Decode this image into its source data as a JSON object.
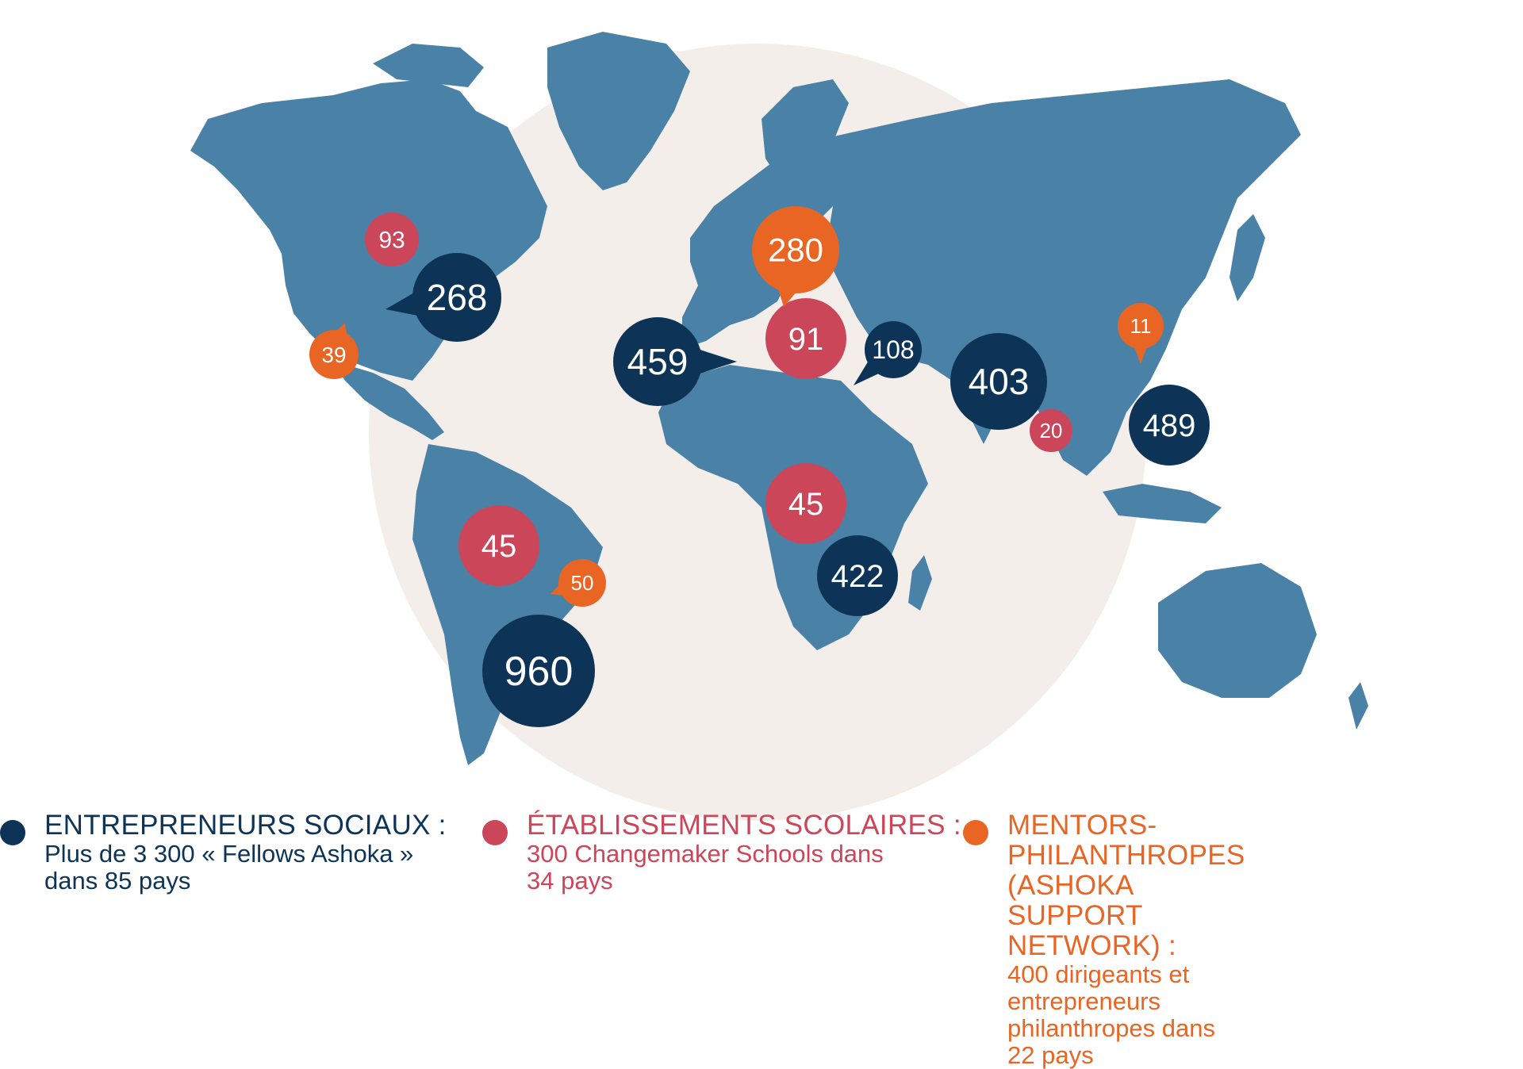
{
  "colors": {
    "navy": "#0d3457",
    "red": "#cc4659",
    "orange": "#e96524",
    "land": "#4a82a7",
    "backdrop": "#f3eeea"
  },
  "markers": [
    {
      "category": "entrepreneurs",
      "value": "268",
      "icon": "speech-bubble"
    },
    {
      "category": "entrepreneurs",
      "value": "459",
      "icon": "speech-bubble"
    },
    {
      "category": "entrepreneurs",
      "value": "108",
      "icon": "speech-bubble"
    },
    {
      "category": "entrepreneurs",
      "value": "403",
      "icon": "circle"
    },
    {
      "category": "entrepreneurs",
      "value": "489",
      "icon": "circle"
    },
    {
      "category": "entrepreneurs",
      "value": "422",
      "icon": "circle"
    },
    {
      "category": "entrepreneurs",
      "value": "960",
      "icon": "circle"
    },
    {
      "category": "schools",
      "value": "93",
      "icon": "circle"
    },
    {
      "category": "schools",
      "value": "91",
      "icon": "circle"
    },
    {
      "category": "schools",
      "value": "20",
      "icon": "circle"
    },
    {
      "category": "schools",
      "value": "45",
      "icon": "circle"
    },
    {
      "category": "schools",
      "value": "45",
      "icon": "circle"
    },
    {
      "category": "mentors",
      "value": "39",
      "icon": "speech-bubble"
    },
    {
      "category": "mentors",
      "value": "280",
      "icon": "speech-bubble"
    },
    {
      "category": "mentors",
      "value": "11",
      "icon": "pin"
    },
    {
      "category": "mentors",
      "value": "50",
      "icon": "speech-bubble"
    }
  ],
  "legend": {
    "entrepreneurs": {
      "title": "ENTREPRENEURS SOCIAUX :",
      "description": "Plus de 3 300 « Fellows Ashoka »\ndans 85 pays"
    },
    "schools": {
      "title": "ÉTABLISSEMENTS SCOLAIRES :",
      "description": "300 Changemaker Schools dans\n34 pays"
    },
    "mentors": {
      "title": "MENTORS-PHILANTHROPES (ASHOKA\nSUPPORT NETWORK) :",
      "description": "400 dirigeants et entrepreneurs\nphilanthropes dans 22 pays"
    }
  }
}
